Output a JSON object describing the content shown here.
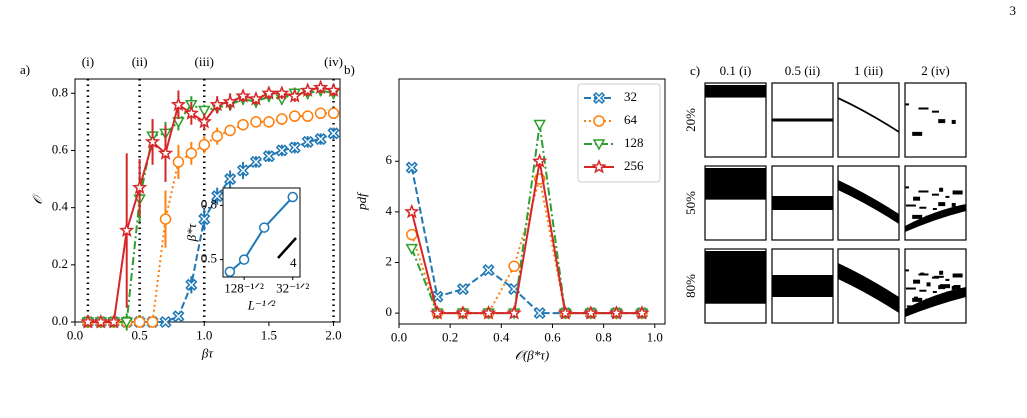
{
  "page_number": "3",
  "chart_data": [
    {
      "type": "line",
      "label": "a)",
      "xlabel": "βτ",
      "ylabel": "𝒪",
      "x": [
        0.1,
        0.2,
        0.3,
        0.4,
        0.5,
        0.6,
        0.7,
        0.8,
        0.9,
        1.0,
        1.1,
        1.2,
        1.3,
        1.4,
        1.5,
        1.6,
        1.7,
        1.8,
        1.9,
        2.0
      ],
      "xlim": [
        0,
        2.05
      ],
      "ylim": [
        0,
        0.85
      ],
      "xticks": [
        {
          "value": 0,
          "label": "0.0"
        },
        0.5,
        {
          "value": 1,
          "label": "1.0"
        },
        1.5,
        {
          "value": 2,
          "label": "2.0"
        }
      ],
      "yticks": [
        {
          "value": 0,
          "label": "0.0"
        },
        0.2,
        0.4,
        0.6,
        0.8
      ],
      "vlines": [
        {
          "value": 0.1,
          "label": "(i)"
        },
        {
          "value": 0.5,
          "label": "(ii)"
        },
        {
          "value": 1.0,
          "label": "(iii)"
        },
        {
          "value": 2.0,
          "label": "(iv)"
        }
      ],
      "series": [
        {
          "name": "32",
          "color": "#1f77b4",
          "marker": "x",
          "linestyle": "dashed",
          "values": [
            0,
            0,
            0,
            0,
            0,
            0,
            0,
            0.02,
            0.13,
            0.36,
            0.44,
            0.5,
            0.53,
            0.56,
            0.58,
            0.6,
            0.61,
            0.63,
            0.64,
            0.66
          ],
          "errors": [
            0,
            0,
            0,
            0,
            0,
            0,
            0,
            0.01,
            0.03,
            0.04,
            0.03,
            0.03,
            0.03,
            0.02,
            0.02,
            0.02,
            0.02,
            0.02,
            0.02,
            0.02
          ]
        },
        {
          "name": "64",
          "color": "#ff7f0e",
          "marker": "o",
          "linestyle": "dotted",
          "values": [
            0,
            0,
            0,
            0,
            0,
            0,
            0.36,
            0.56,
            0.59,
            0.62,
            0.65,
            0.67,
            0.69,
            0.7,
            0.7,
            0.71,
            0.72,
            0.72,
            0.73,
            0.73
          ],
          "errors": [
            0,
            0,
            0,
            0,
            0,
            0,
            0.1,
            0.06,
            0.04,
            0.03,
            0.03,
            0.02,
            0.02,
            0.02,
            0.02,
            0.02,
            0.02,
            0.02,
            0.02,
            0.02
          ]
        },
        {
          "name": "128",
          "color": "#2ca02c",
          "marker": "v",
          "linestyle": "dashdot",
          "values": [
            0,
            0,
            0,
            0,
            0.43,
            0.65,
            0.66,
            0.7,
            0.76,
            0.74,
            0.75,
            0.76,
            0.78,
            0.77,
            0.79,
            0.78,
            0.8,
            0.8,
            0.81,
            0.8
          ],
          "errors": [
            0,
            0,
            0,
            0.03,
            0.08,
            0.05,
            0.04,
            0.03,
            0.03,
            0.02,
            0.02,
            0.02,
            0.02,
            0.02,
            0.02,
            0.02,
            0.02,
            0.02,
            0.02,
            0.02
          ]
        },
        {
          "name": "256",
          "color": "#d62728",
          "marker": "*",
          "linestyle": "solid",
          "values": [
            0,
            0,
            0,
            0.32,
            0.47,
            0.63,
            0.59,
            0.76,
            0.73,
            0.7,
            0.76,
            0.77,
            0.79,
            0.78,
            0.8,
            0.8,
            0.79,
            0.81,
            0.82,
            0.81
          ],
          "errors": [
            0,
            0,
            0,
            0.27,
            0.1,
            0.08,
            0.1,
            0.05,
            0.04,
            0.03,
            0.03,
            0.03,
            0.02,
            0.02,
            0.02,
            0.02,
            0.02,
            0.02,
            0.02,
            0.02
          ]
        }
      ]
    },
    {
      "type": "line",
      "xlabel": "L⁻¹ᐟ²",
      "ylabel": "β*τ",
      "log_y": true,
      "annotation": "4",
      "x": [
        0.0625,
        0.0884,
        0.125,
        0.1768
      ],
      "xlim": [
        0.05,
        0.19
      ],
      "ylim": [
        0.43,
        0.93
      ],
      "xticks": [
        {
          "value": 0.0884,
          "label": "128⁻¹ᐟ²"
        },
        {
          "value": 0.1768,
          "label": "32⁻¹ᐟ²"
        }
      ],
      "yticks": [
        0.5,
        0.8
      ],
      "series": [
        {
          "color": "#1f77b4",
          "marker": "o",
          "linestyle": "solid",
          "values": [
            0.45,
            0.5,
            0.66,
            0.86
          ]
        }
      ]
    },
    {
      "type": "line",
      "label": "b)",
      "xlabel": "𝒪(β*τ)",
      "ylabel": "pdf",
      "legend": "upper right",
      "x": [
        0.05,
        0.15,
        0.25,
        0.35,
        0.45,
        0.55,
        0.65,
        0.75,
        0.85,
        0.95
      ],
      "xlim": [
        0,
        1.04
      ],
      "ylim": [
        -0.43,
        9.25
      ],
      "xticks": [
        {
          "value": 0,
          "label": "0.0"
        },
        0.2,
        0.4,
        0.6,
        0.8,
        {
          "value": 1,
          "label": "1.0"
        }
      ],
      "yticks": [
        0,
        2,
        4,
        6
      ],
      "series": [
        {
          "name": "32",
          "color": "#1f77b4",
          "marker": "x",
          "linestyle": "dashed",
          "values": [
            5.75,
            0.65,
            0.95,
            1.7,
            0.95,
            0,
            0,
            0,
            0,
            0
          ]
        },
        {
          "name": "64",
          "color": "#ff7f0e",
          "marker": "o",
          "linestyle": "dotted",
          "values": [
            3.1,
            0,
            0,
            0,
            1.85,
            5.3,
            0,
            0,
            0,
            0
          ]
        },
        {
          "name": "128",
          "color": "#2ca02c",
          "marker": "v",
          "linestyle": "dashdot",
          "values": [
            2.55,
            0,
            0,
            0,
            0,
            7.45,
            0,
            0,
            0,
            0
          ]
        },
        {
          "name": "256",
          "color": "#d62728",
          "marker": "*",
          "linestyle": "solid",
          "values": [
            4.0,
            0,
            0,
            0,
            0,
            6.0,
            0,
            0,
            0,
            0
          ]
        }
      ]
    }
  ],
  "image_grid": {
    "label": "c)",
    "columns": [
      "0.1 (i)",
      "0.5 (ii)",
      "1 (iii)",
      "2 (iv)"
    ],
    "rows": [
      "20%",
      "50%",
      "80%"
    ]
  }
}
